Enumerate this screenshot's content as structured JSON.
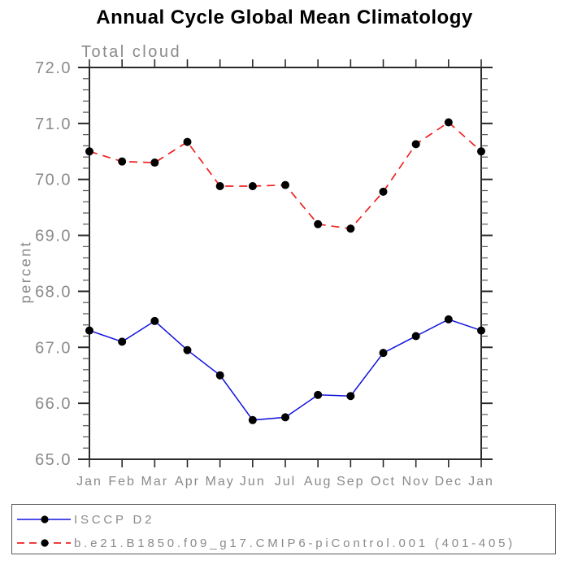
{
  "page": {
    "background": "#ffffff"
  },
  "chart": {
    "title": "Annual Cycle Global Mean Climatology",
    "subtitle": "Total cloud",
    "ylabel": "percent"
  },
  "chart_data": {
    "type": "line",
    "title": "Annual Cycle Global Mean Climatology",
    "subtitle": "Total cloud",
    "xlabel": "",
    "ylabel": "percent",
    "categories": [
      "Jan",
      "Feb",
      "Mar",
      "Apr",
      "May",
      "Jun",
      "Jul",
      "Aug",
      "Sep",
      "Oct",
      "Nov",
      "Dec",
      "Jan"
    ],
    "ylim": [
      65.0,
      72.0
    ],
    "ytick_major": 1.0,
    "ytick_minor": 0.2,
    "ytick_labels": [
      "65.0",
      "66.0",
      "67.0",
      "68.0",
      "69.0",
      "70.0",
      "71.0",
      "72.0"
    ],
    "grid": false,
    "legend_position": "bottom",
    "marker_color": "#000000",
    "series": [
      {
        "name": "ISCCP D2",
        "color": "#1111dd",
        "dash": "solid",
        "values": [
          67.3,
          67.1,
          67.47,
          66.95,
          66.5,
          65.7,
          65.75,
          66.15,
          66.13,
          66.9,
          67.2,
          67.5,
          67.3
        ]
      },
      {
        "name": "b.e21.B1850.f09_g17.CMIP6-piControl.001 (401-405)",
        "color": "#ee2222",
        "dash": "dashed",
        "values": [
          70.5,
          70.32,
          70.3,
          70.67,
          69.88,
          69.88,
          69.9,
          69.2,
          69.12,
          69.78,
          70.63,
          71.02,
          70.5
        ]
      }
    ]
  },
  "colors": {
    "axis": "#2a2a2a",
    "minor_tick": "#555555",
    "label_gray": "#8a8a8a",
    "marker": "#000000"
  }
}
